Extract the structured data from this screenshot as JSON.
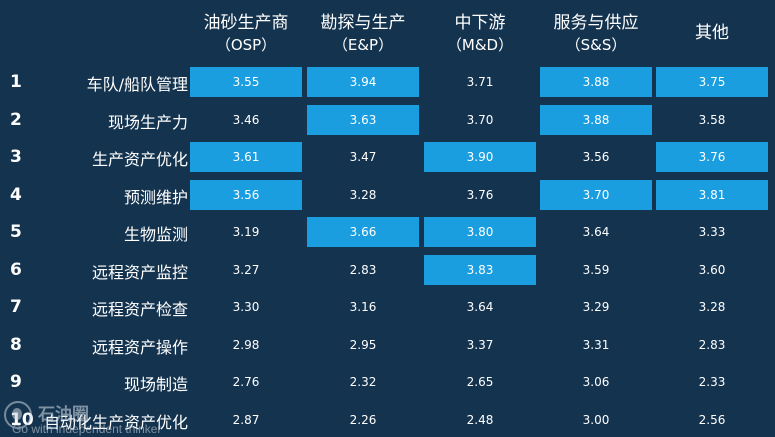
{
  "chart_data": {
    "type": "table",
    "columns": [
      {
        "name": "油砂生产商",
        "abbr": "（OSP）"
      },
      {
        "name": "勘探与生产",
        "abbr": "（E&P）"
      },
      {
        "name": "中下游",
        "abbr": "（M&D）"
      },
      {
        "name": "服务与供应",
        "abbr": "（S&S）"
      },
      {
        "name": "其他",
        "abbr": ""
      }
    ],
    "rows": [
      {
        "rank": "1",
        "label": "车队/船队管理",
        "values": [
          "3.55",
          "3.94",
          "3.71",
          "3.88",
          "3.75"
        ],
        "highlight": [
          true,
          true,
          false,
          true,
          true
        ]
      },
      {
        "rank": "2",
        "label": "现场生产力",
        "values": [
          "3.46",
          "3.63",
          "3.70",
          "3.88",
          "3.58"
        ],
        "highlight": [
          false,
          true,
          false,
          true,
          false
        ]
      },
      {
        "rank": "3",
        "label": "生产资产优化",
        "values": [
          "3.61",
          "3.47",
          "3.90",
          "3.56",
          "3.76"
        ],
        "highlight": [
          true,
          false,
          true,
          false,
          true
        ]
      },
      {
        "rank": "4",
        "label": "预测维护",
        "values": [
          "3.56",
          "3.28",
          "3.76",
          "3.70",
          "3.81"
        ],
        "highlight": [
          true,
          false,
          false,
          true,
          true
        ]
      },
      {
        "rank": "5",
        "label": "生物监测",
        "values": [
          "3.19",
          "3.66",
          "3.80",
          "3.64",
          "3.33"
        ],
        "highlight": [
          false,
          true,
          true,
          false,
          false
        ]
      },
      {
        "rank": "6",
        "label": "远程资产监控",
        "values": [
          "3.27",
          "2.83",
          "3.83",
          "3.59",
          "3.60"
        ],
        "highlight": [
          false,
          false,
          true,
          false,
          false
        ]
      },
      {
        "rank": "7",
        "label": "远程资产检查",
        "values": [
          "3.30",
          "3.16",
          "3.64",
          "3.29",
          "3.28"
        ],
        "highlight": [
          false,
          false,
          false,
          false,
          false
        ]
      },
      {
        "rank": "8",
        "label": "远程资产操作",
        "values": [
          "2.98",
          "2.95",
          "3.37",
          "3.31",
          "2.83"
        ],
        "highlight": [
          false,
          false,
          false,
          false,
          false
        ]
      },
      {
        "rank": "9",
        "label": "现场制造",
        "values": [
          "2.76",
          "2.32",
          "2.65",
          "3.06",
          "2.33"
        ],
        "highlight": [
          false,
          false,
          false,
          false,
          false
        ]
      },
      {
        "rank": "10",
        "label": "自动化生产资产优化",
        "values": [
          "2.87",
          "2.26",
          "2.48",
          "3.00",
          "2.56"
        ],
        "highlight": [
          false,
          false,
          false,
          false,
          false
        ]
      }
    ]
  },
  "watermark": {
    "name": "石油圈",
    "tagline": "Go with independent thinker"
  },
  "colors": {
    "background": "#14334f",
    "highlight": "#1b9ee0",
    "text": "#ffffff"
  }
}
